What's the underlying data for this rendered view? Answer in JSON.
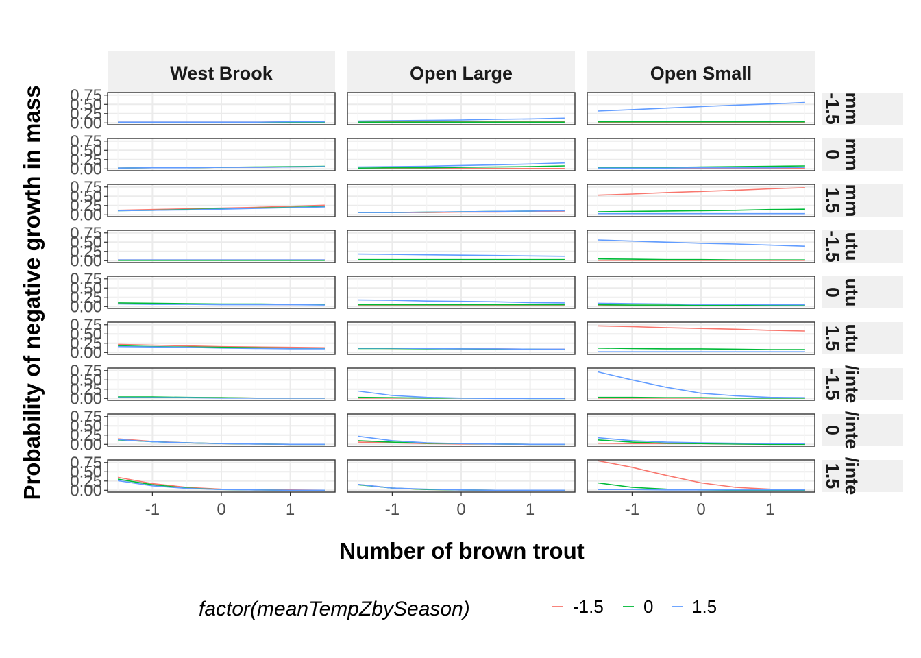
{
  "chart_data": {
    "type": "line",
    "xlabel": "Number of brown trout",
    "ylabel": "Probability of negative growth in mass",
    "x_ticks": [
      "-1",
      "0",
      "1"
    ],
    "x_tick_values": [
      -1,
      0,
      1
    ],
    "y_ticks": [
      "0.00",
      "0.25",
      "0.50",
      "0.75"
    ],
    "y_tick_values": [
      0,
      0.25,
      0.5,
      0.75
    ],
    "xlim": [
      -1.65,
      1.65
    ],
    "ylim": [
      -0.05,
      0.82
    ],
    "grid": true,
    "legend_placement": "bottom",
    "legend": {
      "title": "factor(meanTempZbySeason)",
      "entries": [
        {
          "label": "-1.5",
          "color": "#F8766D"
        },
        {
          "label": "0",
          "color": "#00BA38"
        },
        {
          "label": "1.5",
          "color": "#619CFF"
        }
      ]
    },
    "facet_columns": [
      "West Brook",
      "Open Large",
      "Open Small"
    ],
    "facet_rows": [
      {
        "value": "-1.5",
        "season": "mm"
      },
      {
        "value": "0",
        "season": "mm"
      },
      {
        "value": "1.5",
        "season": "mm"
      },
      {
        "value": "-1.5",
        "season": "utu"
      },
      {
        "value": "0",
        "season": "utu"
      },
      {
        "value": "1.5",
        "season": "utu"
      },
      {
        "value": "-1.5",
        "season": "/inte"
      },
      {
        "value": "0",
        "season": "/inte"
      },
      {
        "value": "1.5",
        "season": "/inte"
      }
    ],
    "x": [
      -1.5,
      -1,
      -0.5,
      0,
      0.5,
      1,
      1.5
    ],
    "panels": [
      [
        [
          [
            0.02,
            0.02,
            0.02,
            0.02,
            0.02,
            0.03,
            0.03
          ],
          [
            0.01,
            0.01,
            0.01,
            0.01,
            0.01,
            0.01,
            0.01
          ],
          [
            0.02,
            0.02,
            0.02,
            0.02,
            0.02,
            0.03,
            0.03
          ]
        ],
        [
          [
            0.02,
            0.03,
            0.03,
            0.04,
            0.04,
            0.05,
            0.06
          ],
          [
            0.02,
            0.03,
            0.03,
            0.04,
            0.05,
            0.06,
            0.07
          ],
          [
            0.02,
            0.03,
            0.03,
            0.04,
            0.04,
            0.05,
            0.06
          ]
        ],
        [
          [
            0.12,
            0.14,
            0.16,
            0.18,
            0.2,
            0.23,
            0.26
          ],
          [
            0.11,
            0.12,
            0.14,
            0.16,
            0.18,
            0.2,
            0.22
          ],
          [
            0.11,
            0.12,
            0.13,
            0.15,
            0.17,
            0.19,
            0.21
          ]
        ],
        [
          [
            0.02,
            0.02,
            0.02,
            0.02,
            0.02,
            0.02,
            0.02
          ],
          [
            0.01,
            0.01,
            0.01,
            0.01,
            0.01,
            0.01,
            0.01
          ],
          [
            0.02,
            0.02,
            0.02,
            0.02,
            0.02,
            0.02,
            0.02
          ]
        ],
        [
          [
            0.08,
            0.07,
            0.07,
            0.06,
            0.06,
            0.05,
            0.05
          ],
          [
            0.1,
            0.09,
            0.08,
            0.07,
            0.07,
            0.06,
            0.06
          ],
          [
            0.07,
            0.06,
            0.06,
            0.05,
            0.05,
            0.05,
            0.04
          ]
        ],
        [
          [
            0.22,
            0.2,
            0.18,
            0.16,
            0.15,
            0.14,
            0.13
          ],
          [
            0.18,
            0.16,
            0.15,
            0.14,
            0.13,
            0.12,
            0.11
          ],
          [
            0.16,
            0.15,
            0.14,
            0.12,
            0.11,
            0.1,
            0.1
          ]
        ],
        [
          [
            0.03,
            0.03,
            0.02,
            0.02,
            0.01,
            0.01,
            0.01
          ],
          [
            0.04,
            0.04,
            0.03,
            0.02,
            0.01,
            0.01,
            0.01
          ],
          [
            0.02,
            0.02,
            0.02,
            0.01,
            0.01,
            0.01,
            0.01
          ]
        ],
        [
          [
            0.15,
            0.08,
            0.04,
            0.02,
            0.01,
            0.0,
            0.0
          ],
          [
            0.12,
            0.07,
            0.04,
            0.02,
            0.01,
            0.0,
            0.0
          ],
          [
            0.13,
            0.07,
            0.04,
            0.02,
            0.01,
            0.0,
            0.0
          ]
        ],
        [
          [
            0.35,
            0.18,
            0.08,
            0.03,
            0.01,
            0.01,
            0.0
          ],
          [
            0.3,
            0.15,
            0.06,
            0.02,
            0.01,
            0.0,
            0.0
          ],
          [
            0.26,
            0.12,
            0.05,
            0.02,
            0.01,
            0.0,
            0.0
          ]
        ]
      ],
      [
        [
          [
            0.03,
            0.03,
            0.03,
            0.03,
            0.03,
            0.03,
            0.03
          ],
          [
            0.02,
            0.02,
            0.02,
            0.02,
            0.02,
            0.02,
            0.02
          ],
          [
            0.05,
            0.06,
            0.07,
            0.08,
            0.1,
            0.11,
            0.13
          ]
        ],
        [
          [
            0.01,
            0.01,
            0.01,
            0.01,
            0.01,
            0.01,
            0.01
          ],
          [
            0.02,
            0.03,
            0.03,
            0.04,
            0.05,
            0.06,
            0.08
          ],
          [
            0.05,
            0.06,
            0.07,
            0.09,
            0.11,
            0.13,
            0.16
          ]
        ],
        [
          [
            0.06,
            0.06,
            0.06,
            0.07,
            0.07,
            0.08,
            0.08
          ],
          [
            0.06,
            0.06,
            0.07,
            0.08,
            0.09,
            0.1,
            0.12
          ],
          [
            0.06,
            0.06,
            0.07,
            0.08,
            0.09,
            0.1,
            0.11
          ]
        ],
        [
          [
            0.02,
            0.02,
            0.02,
            0.02,
            0.02,
            0.02,
            0.02
          ],
          [
            0.03,
            0.03,
            0.03,
            0.03,
            0.03,
            0.03,
            0.03
          ],
          [
            0.18,
            0.17,
            0.16,
            0.15,
            0.14,
            0.13,
            0.12
          ]
        ],
        [
          [
            0.04,
            0.04,
            0.04,
            0.04,
            0.04,
            0.04,
            0.04
          ],
          [
            0.05,
            0.05,
            0.05,
            0.05,
            0.05,
            0.05,
            0.05
          ],
          [
            0.18,
            0.17,
            0.15,
            0.14,
            0.13,
            0.11,
            0.1
          ]
        ],
        [
          [
            0.12,
            0.11,
            0.11,
            0.1,
            0.1,
            0.09,
            0.09
          ],
          [
            0.11,
            0.11,
            0.1,
            0.1,
            0.09,
            0.09,
            0.08
          ],
          [
            0.12,
            0.12,
            0.11,
            0.1,
            0.1,
            0.09,
            0.09
          ]
        ],
        [
          [
            0.01,
            0.01,
            0.01,
            0.01,
            0.01,
            0.01,
            0.01
          ],
          [
            0.03,
            0.02,
            0.01,
            0.01,
            0.01,
            0.0,
            0.0
          ],
          [
            0.2,
            0.08,
            0.03,
            0.01,
            0.0,
            0.0,
            0.0
          ]
        ],
        [
          [
            0.06,
            0.04,
            0.02,
            0.01,
            0.01,
            0.0,
            0.0
          ],
          [
            0.1,
            0.06,
            0.03,
            0.02,
            0.01,
            0.0,
            0.0
          ],
          [
            0.22,
            0.1,
            0.04,
            0.02,
            0.01,
            0.0,
            0.0
          ]
        ],
        [
          [
            0.16,
            0.06,
            0.02,
            0.01,
            0.0,
            0.0,
            0.0
          ],
          [
            0.15,
            0.06,
            0.02,
            0.01,
            0.0,
            0.0,
            0.0
          ],
          [
            0.16,
            0.06,
            0.03,
            0.01,
            0.0,
            0.0,
            0.0
          ]
        ]
      ],
      [
        [
          [
            0.01,
            0.01,
            0.01,
            0.01,
            0.01,
            0.01,
            0.01
          ],
          [
            0.03,
            0.03,
            0.03,
            0.03,
            0.03,
            0.03,
            0.03
          ],
          [
            0.32,
            0.36,
            0.4,
            0.44,
            0.48,
            0.51,
            0.55
          ]
        ],
        [
          [
            0.01,
            0.01,
            0.01,
            0.01,
            0.01,
            0.01,
            0.01
          ],
          [
            0.03,
            0.04,
            0.04,
            0.05,
            0.06,
            0.07,
            0.08
          ],
          [
            0.02,
            0.02,
            0.02,
            0.03,
            0.03,
            0.03,
            0.04
          ]
        ],
        [
          [
            0.53,
            0.56,
            0.6,
            0.63,
            0.66,
            0.7,
            0.73
          ],
          [
            0.08,
            0.09,
            0.1,
            0.11,
            0.12,
            0.14,
            0.15
          ],
          [
            0.03,
            0.03,
            0.03,
            0.03,
            0.03,
            0.03,
            0.03
          ]
        ],
        [
          [
            0.01,
            0.01,
            0.01,
            0.01,
            0.01,
            0.01,
            0.01
          ],
          [
            0.05,
            0.04,
            0.03,
            0.03,
            0.02,
            0.02,
            0.02
          ],
          [
            0.56,
            0.53,
            0.5,
            0.47,
            0.45,
            0.42,
            0.39
          ]
        ],
        [
          [
            0.02,
            0.02,
            0.02,
            0.02,
            0.02,
            0.02,
            0.02
          ],
          [
            0.05,
            0.04,
            0.04,
            0.03,
            0.03,
            0.03,
            0.02
          ],
          [
            0.09,
            0.08,
            0.07,
            0.06,
            0.06,
            0.05,
            0.05
          ]
        ],
        [
          [
            0.72,
            0.7,
            0.67,
            0.65,
            0.63,
            0.6,
            0.58
          ],
          [
            0.12,
            0.11,
            0.1,
            0.1,
            0.09,
            0.08,
            0.08
          ],
          [
            0.02,
            0.02,
            0.02,
            0.02,
            0.02,
            0.02,
            0.02
          ]
        ],
        [
          [
            0.01,
            0.01,
            0.01,
            0.01,
            0.01,
            0.01,
            0.01
          ],
          [
            0.03,
            0.03,
            0.02,
            0.02,
            0.01,
            0.01,
            0.01
          ],
          [
            0.72,
            0.5,
            0.3,
            0.14,
            0.07,
            0.03,
            0.02
          ]
        ],
        [
          [
            0.03,
            0.02,
            0.02,
            0.02,
            0.01,
            0.01,
            0.01
          ],
          [
            0.12,
            0.06,
            0.03,
            0.02,
            0.01,
            0.0,
            0.0
          ],
          [
            0.18,
            0.1,
            0.06,
            0.04,
            0.03,
            0.02,
            0.02
          ]
        ],
        [
          [
            0.8,
            0.62,
            0.4,
            0.2,
            0.08,
            0.03,
            0.01
          ],
          [
            0.2,
            0.08,
            0.03,
            0.01,
            0.0,
            0.0,
            0.0
          ],
          [
            0.02,
            0.02,
            0.01,
            0.01,
            0.01,
            0.01,
            0.01
          ]
        ]
      ]
    ]
  }
}
